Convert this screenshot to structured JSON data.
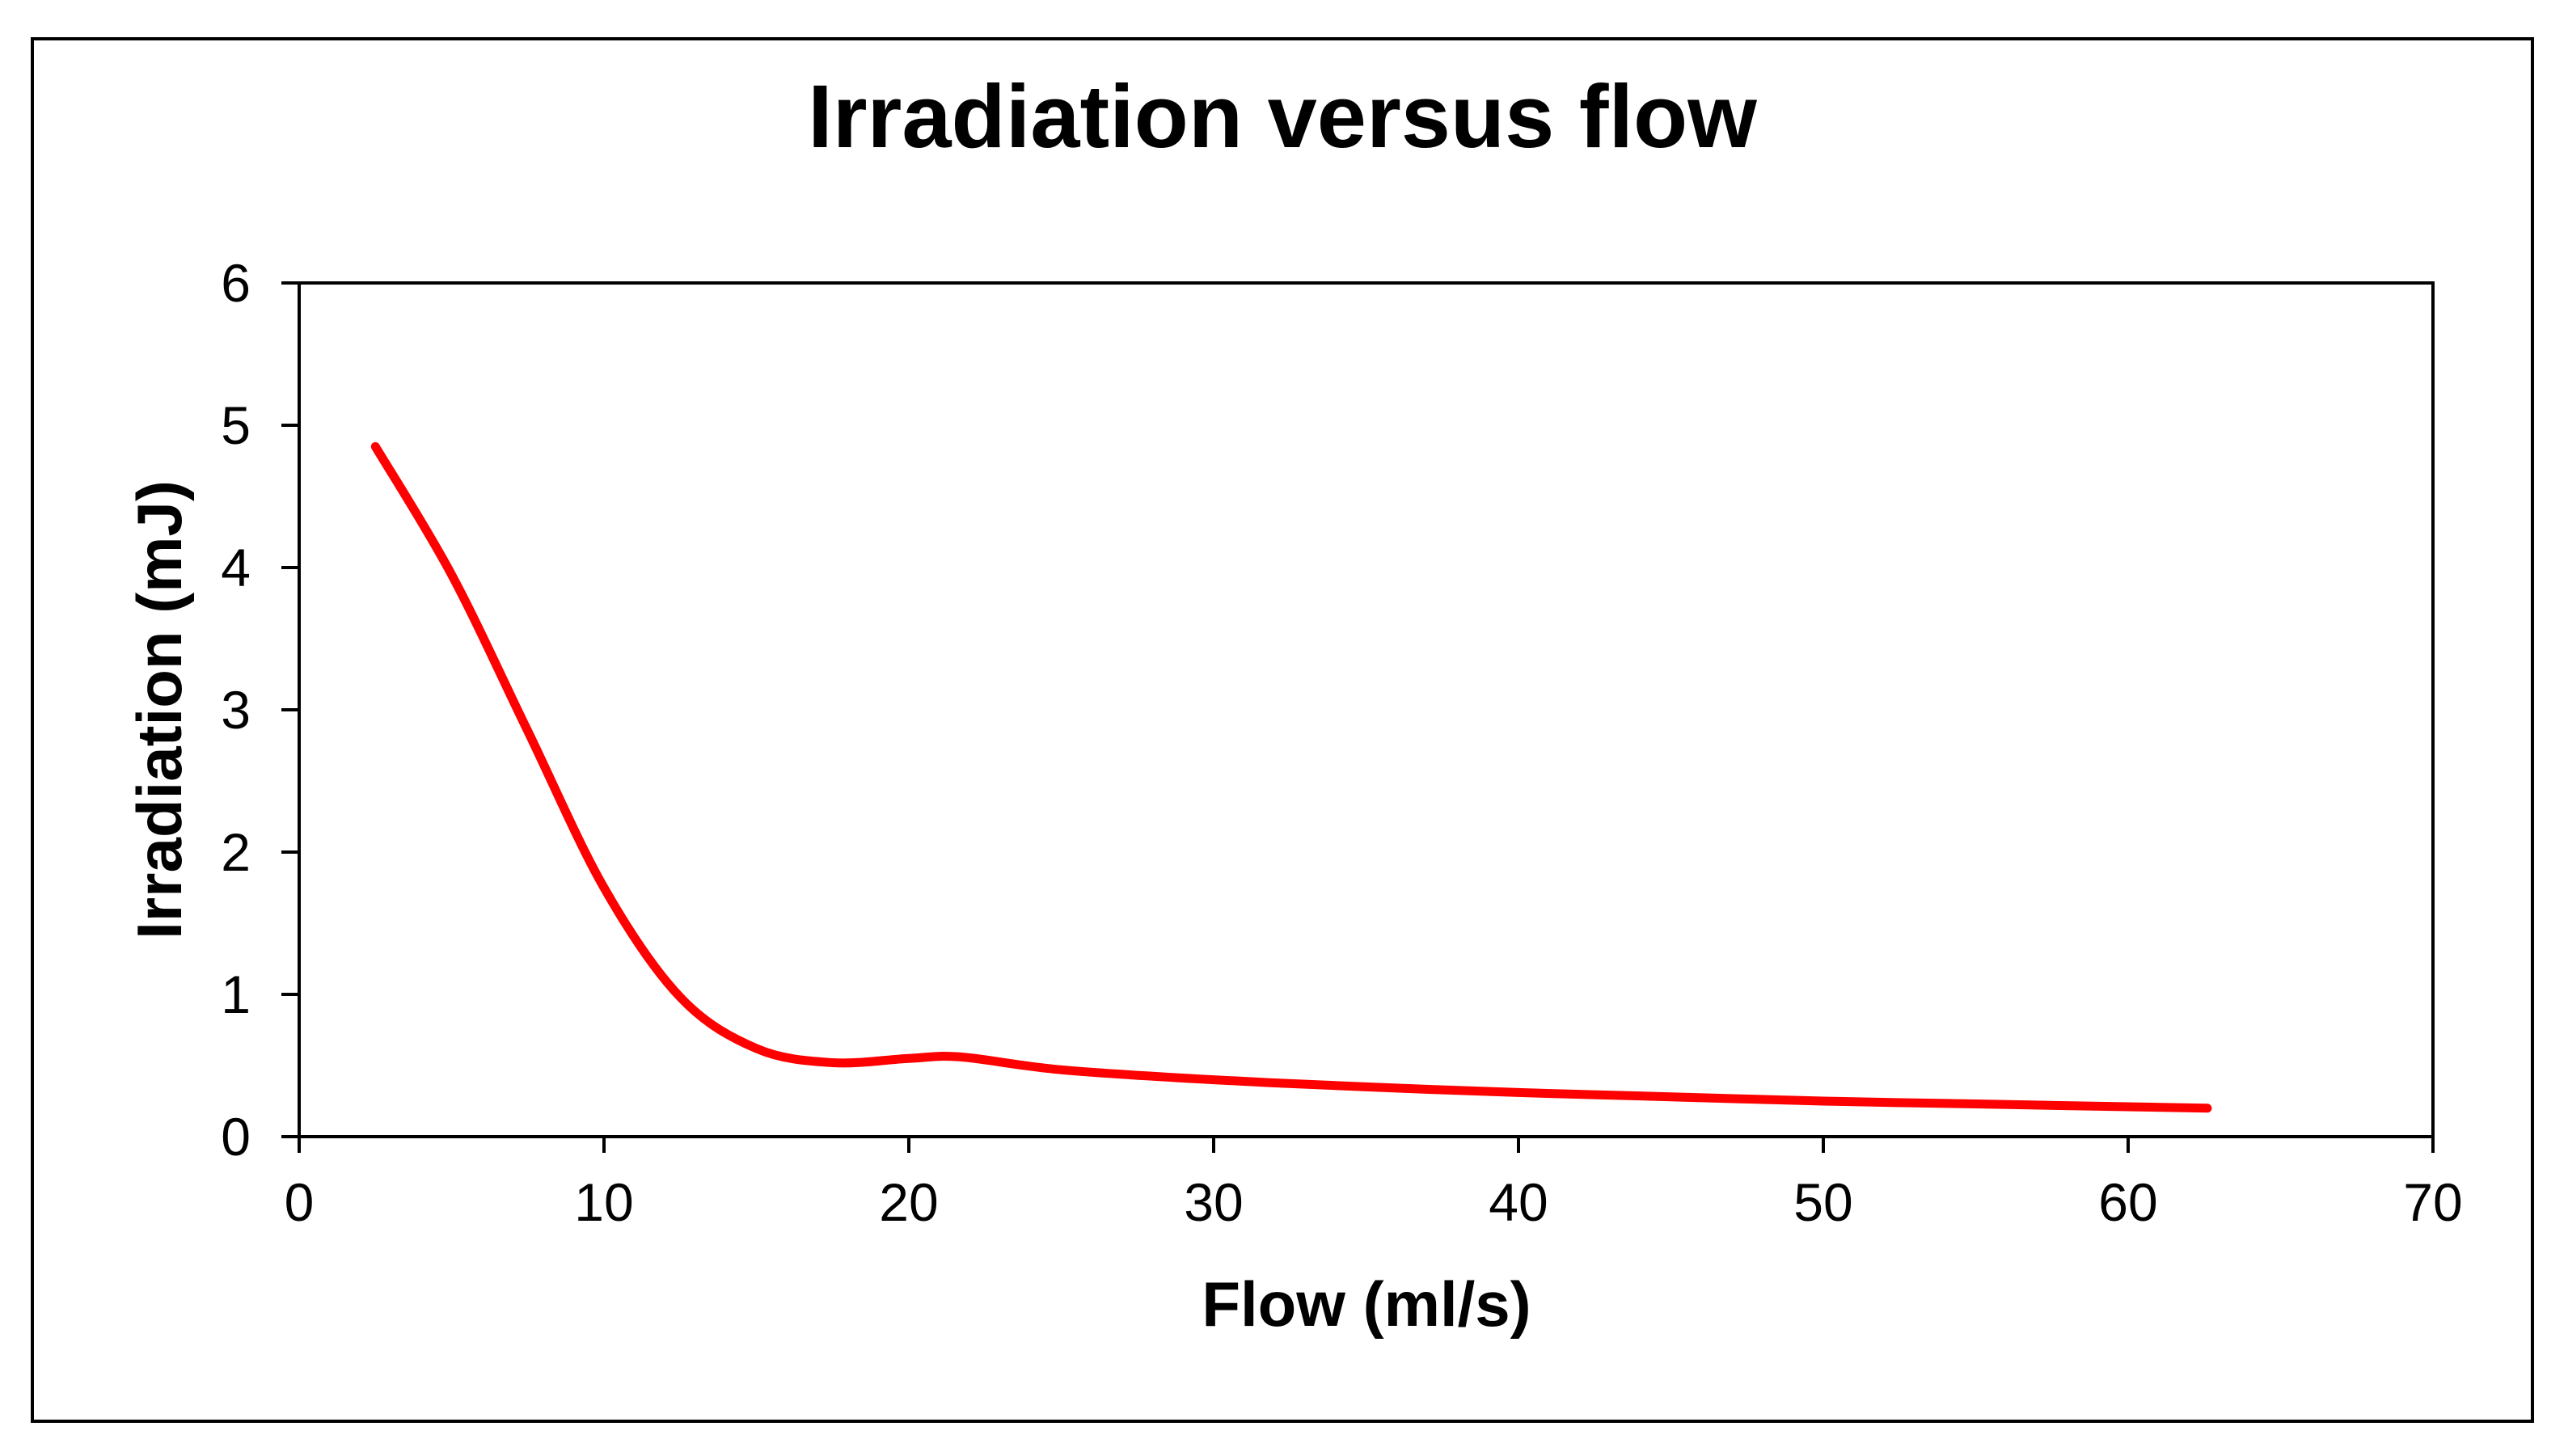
{
  "chart_data": {
    "type": "line",
    "title": "Irradiation versus flow",
    "xlabel": "Flow (ml/s)",
    "ylabel": "Irradiation (mJ)",
    "xlim": [
      0,
      70
    ],
    "ylim": [
      0,
      6
    ],
    "xticks": [
      0,
      10,
      20,
      30,
      40,
      50,
      60,
      70
    ],
    "yticks": [
      0,
      1,
      2,
      3,
      4,
      5,
      6
    ],
    "grid": false,
    "legend": "none",
    "series": [
      {
        "name": "Irradiation",
        "color": "#ff0000",
        "x": [
          2.5,
          5,
          7.5,
          10,
          12.5,
          15,
          17.5,
          20,
          21.7,
          25,
          30,
          35,
          40,
          45,
          50,
          55,
          60,
          62.6
        ],
        "y": [
          4.85,
          3.95,
          2.85,
          1.75,
          0.98,
          0.62,
          0.52,
          0.55,
          0.56,
          0.47,
          0.4,
          0.35,
          0.31,
          0.28,
          0.25,
          0.23,
          0.21,
          0.2
        ]
      }
    ]
  },
  "colors": {
    "background": "#ffffff",
    "axis": "#000000",
    "series": "#ff0000"
  }
}
